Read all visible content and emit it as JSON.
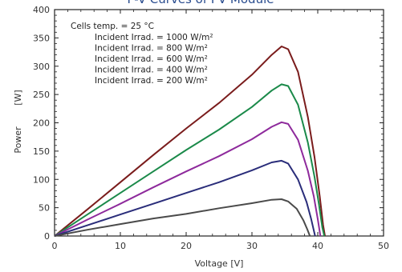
{
  "chart_data": {
    "type": "line",
    "title": "P-V Curves of PV Module",
    "xlabel": "Voltage [V]",
    "ylabel": "Power",
    "yunit": "[W]",
    "xlim": [
      0,
      50
    ],
    "ylim": [
      0,
      400
    ],
    "xticks": [
      0,
      10,
      20,
      30,
      40,
      50
    ],
    "yticks": [
      0,
      50,
      100,
      150,
      200,
      250,
      300,
      350,
      400
    ],
    "grid": false,
    "legend_position": "top-left",
    "legend_header": "Cells temp. = 25 °C",
    "series": [
      {
        "name": "Incident Irrad. = 1000 W/m²",
        "color": "#7a1c1c",
        "x": [
          0,
          5,
          10,
          15,
          20,
          25,
          30,
          33,
          34.5,
          35.5,
          37,
          38.5,
          39.5,
          40.3,
          40.8,
          41.1
        ],
        "y": [
          0,
          47,
          95,
          143,
          190,
          235,
          285,
          320,
          335,
          330,
          290,
          210,
          140,
          70,
          20,
          0
        ]
      },
      {
        "name": "Incident Irrad. = 800 W/m²",
        "color": "#1b8a4a",
        "x": [
          0,
          5,
          10,
          15,
          20,
          25,
          30,
          33,
          34.5,
          35.5,
          37,
          38.5,
          39.5,
          40.2,
          40.7,
          41.0
        ],
        "y": [
          0,
          38,
          76,
          114,
          152,
          188,
          228,
          257,
          268,
          265,
          232,
          165,
          105,
          55,
          15,
          0
        ]
      },
      {
        "name": "Incident Irrad. = 600 W/m²",
        "color": "#8e2a9c",
        "x": [
          0,
          5,
          10,
          15,
          20,
          25,
          30,
          33,
          34.5,
          35.5,
          37,
          38.5,
          39.4,
          40.0,
          40.4
        ],
        "y": [
          0,
          29,
          57,
          86,
          114,
          141,
          171,
          193,
          201,
          198,
          170,
          115,
          70,
          30,
          0
        ]
      },
      {
        "name": "Incident Irrad. = 400 W/m²",
        "color": "#2a2d7a",
        "x": [
          0,
          5,
          10,
          15,
          20,
          25,
          30,
          33,
          34.5,
          35.5,
          37,
          38.3,
          39.0,
          39.6
        ],
        "y": [
          0,
          19,
          38,
          57,
          76,
          95,
          116,
          130,
          133,
          128,
          100,
          60,
          30,
          0
        ]
      },
      {
        "name": "Incident Irrad. = 200 W/m²",
        "color": "#4a4a4a",
        "x": [
          0,
          5,
          10,
          15,
          20,
          25,
          30,
          33,
          34.5,
          35.5,
          36.8,
          37.8,
          38.4,
          38.8
        ],
        "y": [
          0,
          11,
          21,
          31,
          39,
          49,
          58,
          64,
          65,
          61,
          48,
          28,
          12,
          0
        ]
      }
    ]
  }
}
